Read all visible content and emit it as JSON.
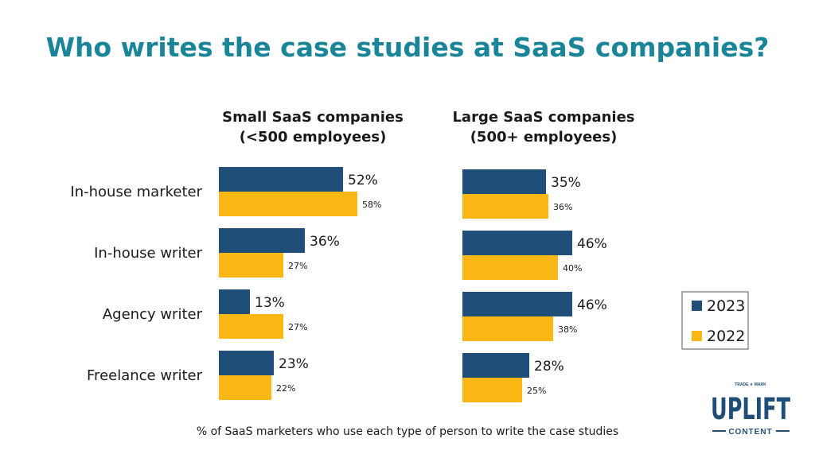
{
  "chart_data": {
    "type": "bar",
    "orientation": "horizontal",
    "title": "Who writes the case studies at SaaS companies?",
    "footnote": "% of SaaS marketers who use each type of person to write the case studies",
    "categories": [
      "In-house marketer",
      "In-house writer",
      "Agency writer",
      "Freelance writer"
    ],
    "legend": {
      "placement": "right",
      "entries": [
        {
          "name": "2023",
          "color": "#1f4e79"
        },
        {
          "name": "2022",
          "color": "#fbb814"
        }
      ]
    },
    "colors": {
      "title": "#1a8599",
      "series_2023": "#1f4e79",
      "series_2022": "#fbb814",
      "text": "#1a1a1a"
    },
    "panels": [
      {
        "title_line1": "Small SaaS companies",
        "title_line2": "(<500 employees)",
        "series": [
          {
            "name": "2023",
            "values": [
              52,
              36,
              13,
              23
            ],
            "labels": [
              "52%",
              "36%",
              "13%",
              "23%"
            ]
          },
          {
            "name": "2022",
            "values": [
              58,
              27,
              27,
              22
            ],
            "labels": [
              "58%",
              "27%",
              "27%",
              "22%"
            ]
          }
        ]
      },
      {
        "title_line1": "Large SaaS companies",
        "title_line2": "(500+ employees)",
        "series": [
          {
            "name": "2023",
            "values": [
              35,
              46,
              46,
              28
            ],
            "labels": [
              "35%",
              "46%",
              "46%",
              "28%"
            ]
          },
          {
            "name": "2022",
            "values": [
              36,
              40,
              38,
              25
            ],
            "labels": [
              "36%",
              "40%",
              "38%",
              "25%"
            ]
          }
        ]
      }
    ]
  },
  "logo": {
    "trademark": "TRADE ★ MARK",
    "name": "UPLIFT",
    "subtitle": "CONTENT",
    "color": "#1f4e79",
    "accent": "#c0392b"
  }
}
